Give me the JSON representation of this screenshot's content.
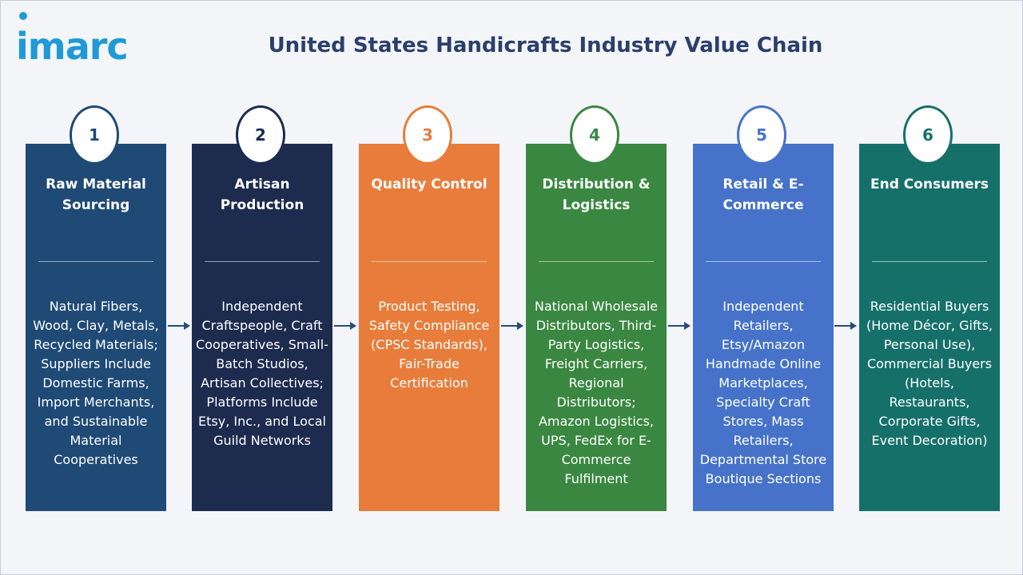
{
  "brand": {
    "logo_text": "imarc",
    "color": "#1f9ad6"
  },
  "title": "United States Handicrafts Industry Value Chain",
  "stages": [
    {
      "number": "1",
      "title": "Raw Material Sourcing",
      "color": "#1f4a75",
      "description": "Natural Fibers, Wood, Clay, Metals, Recycled Materials; Suppliers Include Domestic Farms, Import Merchants, and Sustainable Material Cooperatives"
    },
    {
      "number": "2",
      "title": "Artisan Production",
      "color": "#1c2b4e",
      "description": "Independent Craftspeople, Craft Cooperatives, Small-Batch Studios, Artisan Collectives; Platforms Include Etsy, Inc., and Local Guild Networks"
    },
    {
      "number": "3",
      "title": "Quality Control",
      "color": "#e87d3b",
      "description": "Product Testing, Safety Compliance (CPSC Standards), Fair-Trade Certification"
    },
    {
      "number": "4",
      "title": "Distribution & Logistics",
      "color": "#3a8741",
      "description": "National Wholesale Distributors, Third-Party Logistics, Freight Carriers, Regional Distributors; Amazon Logistics, UPS, FedEx for E-Commerce Fulfilment"
    },
    {
      "number": "5",
      "title": "Retail & E-Commerce",
      "color": "#4673c9",
      "description": "Independent Retailers, Etsy/Amazon Handmade Online Marketplaces, Specialty Craft Stores, Mass Retailers, Departmental Store Boutique Sections"
    },
    {
      "number": "6",
      "title": "End Consumers",
      "color": "#16706a",
      "description": "Residential Buyers (Home Décor, Gifts, Personal Use), Commercial Buyers (Hotels, Restaurants, Corporate Gifts, Event Decoration)"
    }
  ],
  "arrow_color": "#2a4a7a"
}
